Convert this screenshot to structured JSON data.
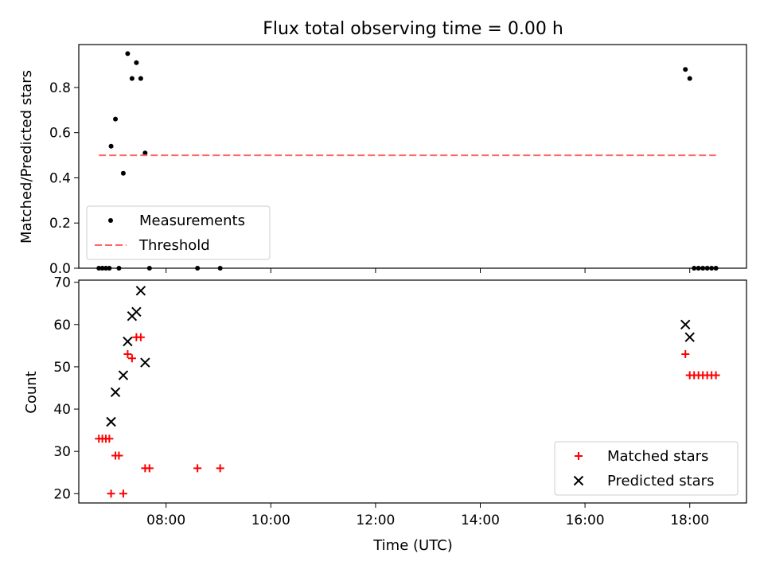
{
  "chart_data": [
    {
      "type": "scatter",
      "title": "Flux total observing time = 0.00 h",
      "ylabel": "Matched/Predicted stars",
      "xlabel": "",
      "xlim": [
        "06:20",
        "19:05"
      ],
      "ylim": [
        0,
        0.99
      ],
      "yticks": [
        0.0,
        0.2,
        0.4,
        0.6,
        0.8
      ],
      "ytick_labels": [
        "0.0",
        "0.2",
        "0.4",
        "0.6",
        "0.8"
      ],
      "xticks": [
        "08:00",
        "10:00",
        "12:00",
        "14:00",
        "16:00",
        "18:00"
      ],
      "grid": false,
      "legend_position": "lower-left",
      "series": [
        {
          "name": "Measurements",
          "marker": "dot",
          "color": "#000000",
          "points": [
            {
              "x": "06:43",
              "y": 0.0
            },
            {
              "x": "06:47",
              "y": 0.0
            },
            {
              "x": "06:51",
              "y": 0.0
            },
            {
              "x": "06:55",
              "y": 0.0
            },
            {
              "x": "06:57",
              "y": 0.54
            },
            {
              "x": "07:02",
              "y": 0.66
            },
            {
              "x": "07:06",
              "y": 0.0
            },
            {
              "x": "07:11",
              "y": 0.42
            },
            {
              "x": "07:16",
              "y": 0.95
            },
            {
              "x": "07:21",
              "y": 0.84
            },
            {
              "x": "07:26",
              "y": 0.91
            },
            {
              "x": "07:31",
              "y": 0.84
            },
            {
              "x": "07:36",
              "y": 0.51
            },
            {
              "x": "07:41",
              "y": 0.0
            },
            {
              "x": "08:36",
              "y": 0.0
            },
            {
              "x": "09:02",
              "y": 0.0
            },
            {
              "x": "17:55",
              "y": 0.88
            },
            {
              "x": "18:00",
              "y": 0.84
            },
            {
              "x": "18:05",
              "y": 0.0
            },
            {
              "x": "18:10",
              "y": 0.0
            },
            {
              "x": "18:15",
              "y": 0.0
            },
            {
              "x": "18:20",
              "y": 0.0
            },
            {
              "x": "18:25",
              "y": 0.0
            },
            {
              "x": "18:30",
              "y": 0.0
            }
          ]
        },
        {
          "name": "Threshold",
          "style": "dashed",
          "color": "#ff6666",
          "points": [
            {
              "x": "06:43",
              "y": 0.5
            },
            {
              "x": "18:30",
              "y": 0.5
            }
          ]
        }
      ]
    },
    {
      "type": "scatter",
      "title": "",
      "ylabel": "Count",
      "xlabel": "Time (UTC)",
      "xlim": [
        "06:20",
        "19:05"
      ],
      "ylim": [
        17.8,
        70.5
      ],
      "yticks": [
        20,
        30,
        40,
        50,
        60,
        70
      ],
      "ytick_labels": [
        "20",
        "30",
        "40",
        "50",
        "60",
        "70"
      ],
      "xticks": [
        "08:00",
        "10:00",
        "12:00",
        "14:00",
        "16:00",
        "18:00"
      ],
      "grid": false,
      "legend_position": "lower-right",
      "series": [
        {
          "name": "Matched stars",
          "marker": "plus",
          "color": "#ff0000",
          "points": [
            {
              "x": "06:43",
              "y": 33
            },
            {
              "x": "06:47",
              "y": 33
            },
            {
              "x": "06:51",
              "y": 33
            },
            {
              "x": "06:55",
              "y": 33
            },
            {
              "x": "06:57",
              "y": 20
            },
            {
              "x": "07:02",
              "y": 29
            },
            {
              "x": "07:06",
              "y": 29
            },
            {
              "x": "07:11",
              "y": 20
            },
            {
              "x": "07:16",
              "y": 53
            },
            {
              "x": "07:21",
              "y": 52
            },
            {
              "x": "07:26",
              "y": 57
            },
            {
              "x": "07:31",
              "y": 57
            },
            {
              "x": "07:36",
              "y": 26
            },
            {
              "x": "07:41",
              "y": 26
            },
            {
              "x": "08:36",
              "y": 26
            },
            {
              "x": "09:02",
              "y": 26
            },
            {
              "x": "17:55",
              "y": 53
            },
            {
              "x": "18:00",
              "y": 48
            },
            {
              "x": "18:05",
              "y": 48
            },
            {
              "x": "18:10",
              "y": 48
            },
            {
              "x": "18:15",
              "y": 48
            },
            {
              "x": "18:20",
              "y": 48
            },
            {
              "x": "18:25",
              "y": 48
            },
            {
              "x": "18:30",
              "y": 48
            }
          ]
        },
        {
          "name": "Predicted stars",
          "marker": "x",
          "color": "#000000",
          "points": [
            {
              "x": "06:57",
              "y": 37
            },
            {
              "x": "07:02",
              "y": 44
            },
            {
              "x": "07:11",
              "y": 48
            },
            {
              "x": "07:16",
              "y": 56
            },
            {
              "x": "07:21",
              "y": 62
            },
            {
              "x": "07:26",
              "y": 63
            },
            {
              "x": "07:31",
              "y": 68
            },
            {
              "x": "07:36",
              "y": 51
            },
            {
              "x": "17:55",
              "y": 60
            },
            {
              "x": "18:00",
              "y": 57
            }
          ]
        }
      ]
    }
  ]
}
